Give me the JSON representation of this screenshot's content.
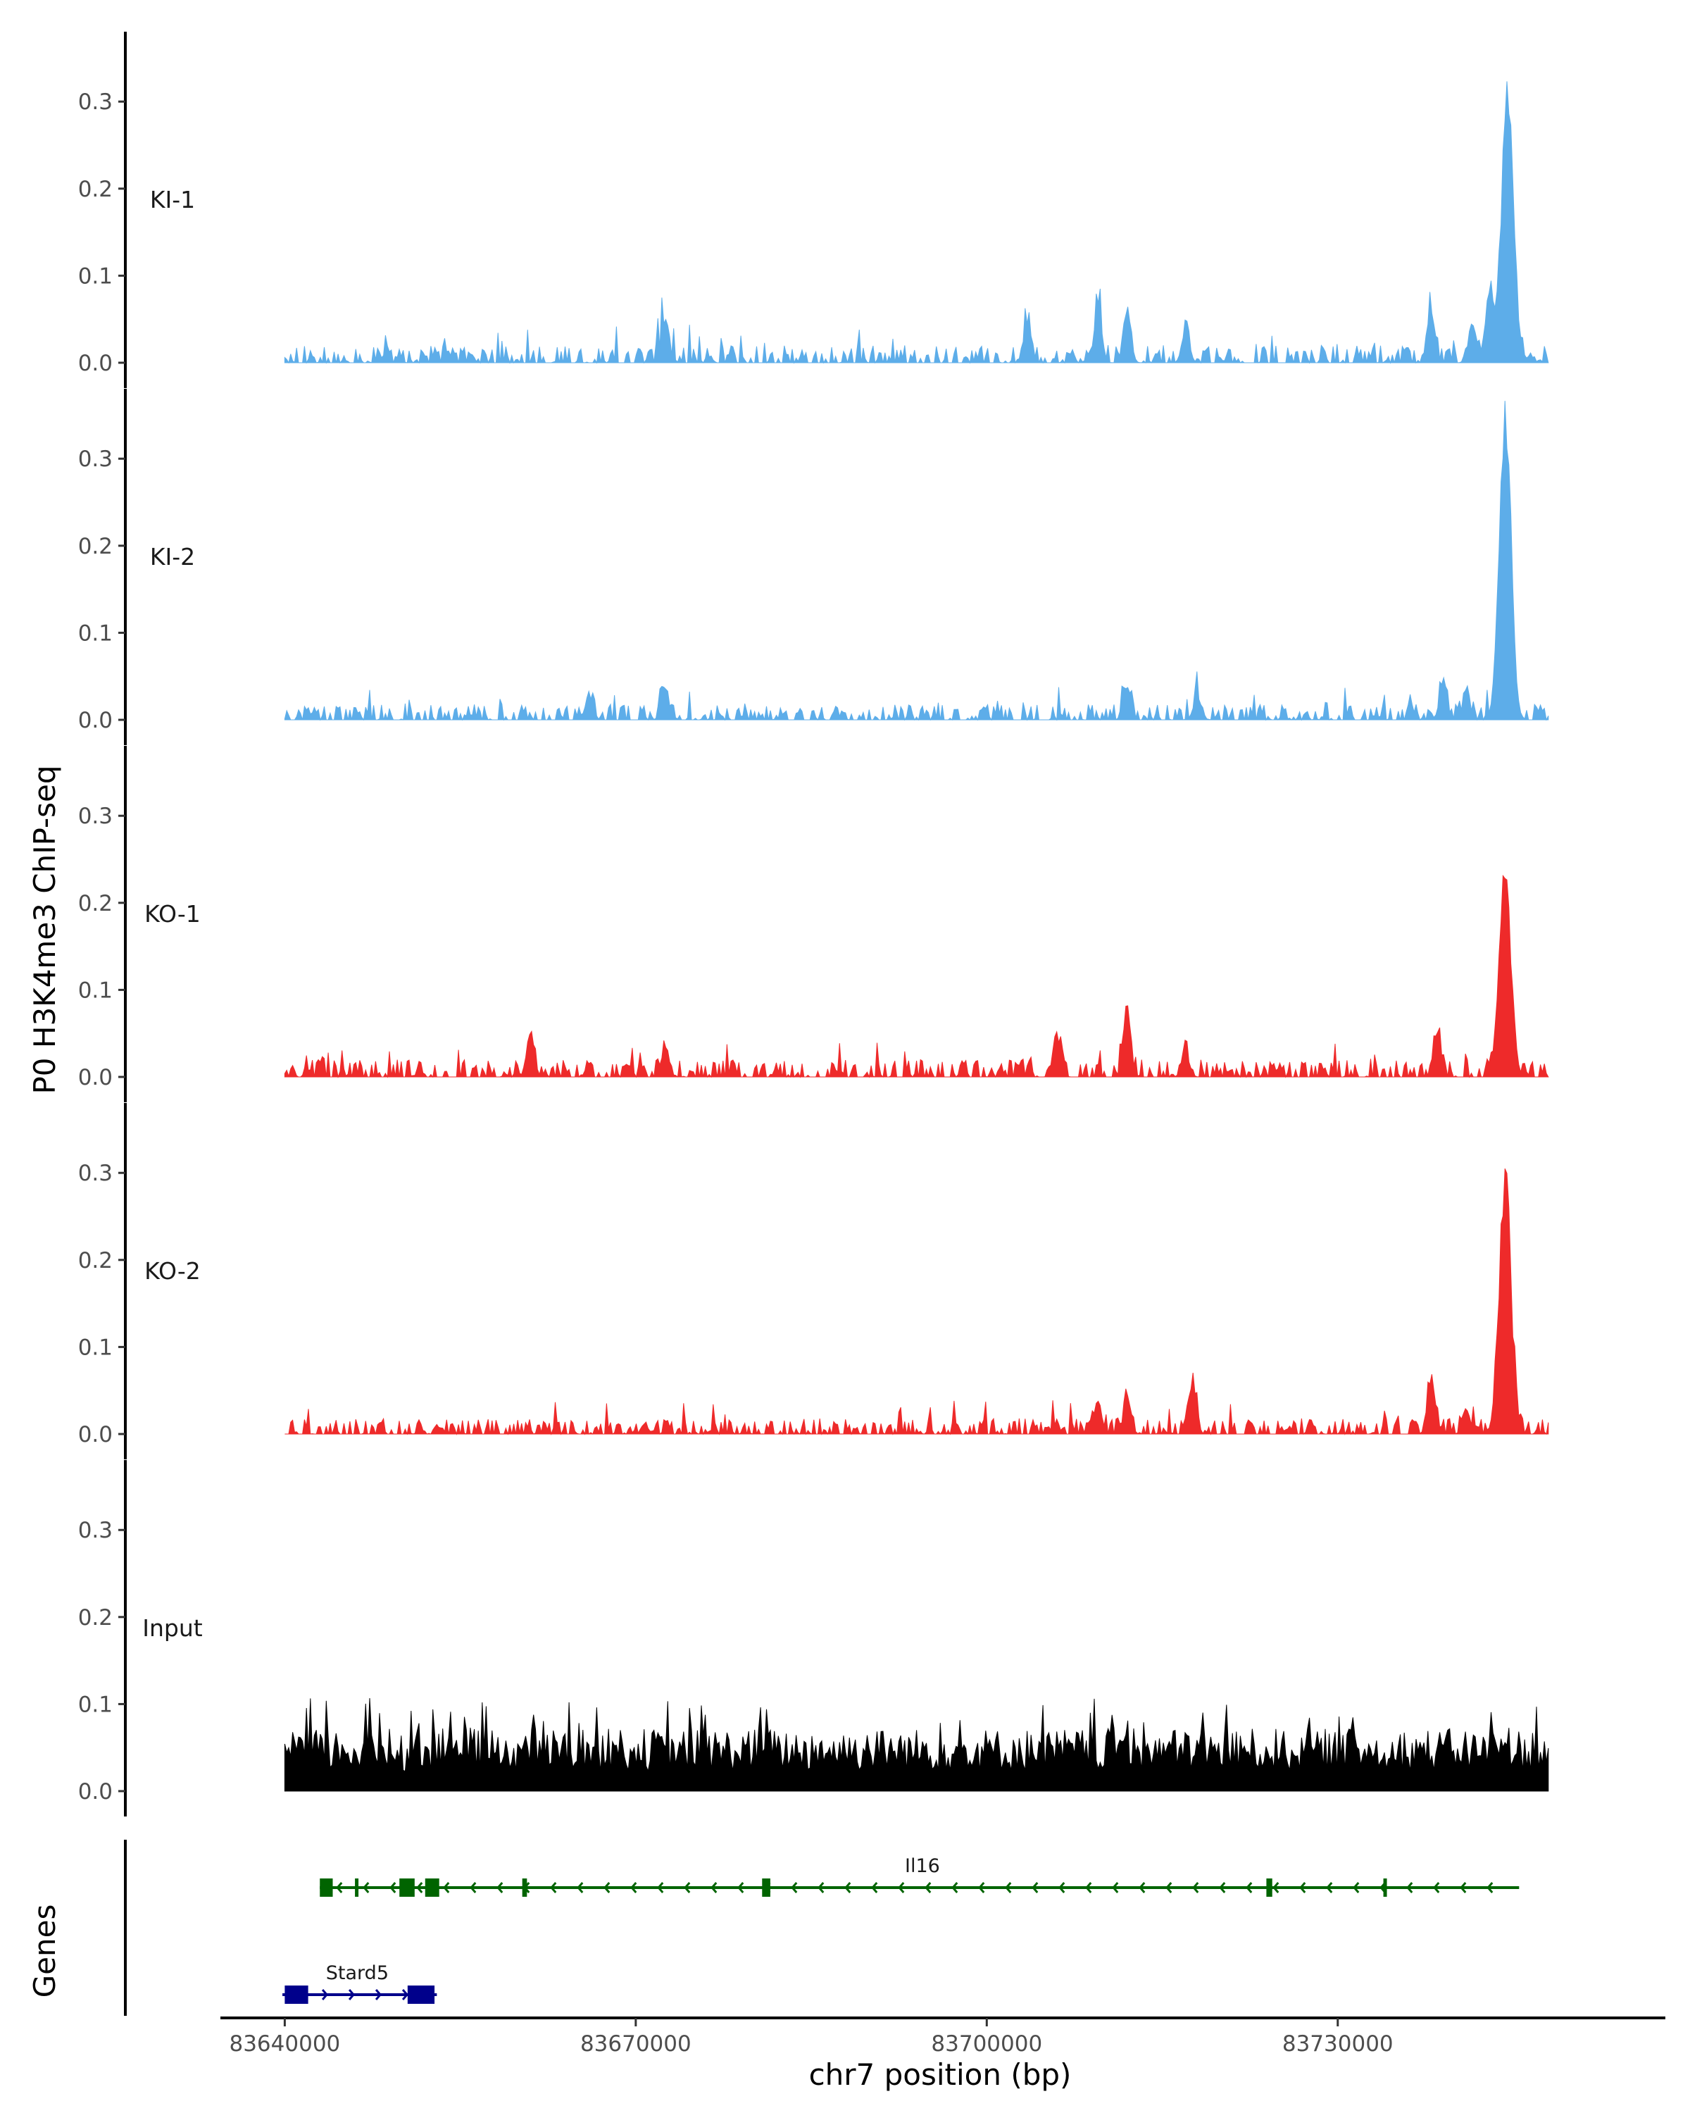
{
  "chart_data": {
    "type": "area",
    "title": "",
    "xlabel": "chr7 position (bp)",
    "ylabel": "P0 H3K4me3 ChIP-seq",
    "genes_label": "Genes",
    "xlim": [
      83634500,
      83758000
    ],
    "ylim": [
      0,
      0.39
    ],
    "x_ticks": [
      83640000,
      83670000,
      83700000,
      83730000
    ],
    "x_tick_labels": [
      "83640000",
      "83670000",
      "83700000",
      "83730000"
    ],
    "y_ticks": [
      0.0,
      0.1,
      0.2,
      0.3
    ],
    "y_tick_labels": [
      "0.0",
      "0.1",
      "0.2",
      "0.3"
    ],
    "grid": false,
    "legend": "none",
    "x_start": 83640000,
    "x_end": 83748000,
    "series": [
      {
        "name": "KI-1",
        "color": "#5dade9",
        "peaks": [
          {
            "x": 83672500,
            "y": 0.05
          },
          {
            "x": 83703500,
            "y": 0.05
          },
          {
            "x": 83709500,
            "y": 0.07
          },
          {
            "x": 83712000,
            "y": 0.06
          },
          {
            "x": 83717000,
            "y": 0.04
          },
          {
            "x": 83738000,
            "y": 0.06
          },
          {
            "x": 83741500,
            "y": 0.05
          },
          {
            "x": 83743000,
            "y": 0.09
          },
          {
            "x": 83744500,
            "y": 0.33
          }
        ],
        "background": 0.02
      },
      {
        "name": "KI-2",
        "color": "#5dade9",
        "peaks": [
          {
            "x": 83666000,
            "y": 0.03
          },
          {
            "x": 83672500,
            "y": 0.04
          },
          {
            "x": 83712000,
            "y": 0.04
          },
          {
            "x": 83718000,
            "y": 0.03
          },
          {
            "x": 83739000,
            "y": 0.04
          },
          {
            "x": 83741000,
            "y": 0.03
          },
          {
            "x": 83744300,
            "y": 0.375
          }
        ],
        "background": 0.018
      },
      {
        "name": "KO-1",
        "color": "#ee2a2a",
        "peaks": [
          {
            "x": 83661000,
            "y": 0.055
          },
          {
            "x": 83672500,
            "y": 0.03
          },
          {
            "x": 83706000,
            "y": 0.05
          },
          {
            "x": 83712000,
            "y": 0.07
          },
          {
            "x": 83717000,
            "y": 0.03
          },
          {
            "x": 83738500,
            "y": 0.05
          },
          {
            "x": 83744300,
            "y": 0.25
          }
        ],
        "background": 0.02
      },
      {
        "name": "KO-2",
        "color": "#ee2a2a",
        "peaks": [
          {
            "x": 83709500,
            "y": 0.04
          },
          {
            "x": 83712000,
            "y": 0.04
          },
          {
            "x": 83717500,
            "y": 0.06
          },
          {
            "x": 83738000,
            "y": 0.07
          },
          {
            "x": 83741000,
            "y": 0.03
          },
          {
            "x": 83744300,
            "y": 0.31
          }
        ],
        "background": 0.018
      },
      {
        "name": "Input",
        "color": "#000000",
        "peaks": [],
        "background": 0.09
      }
    ],
    "genes": [
      {
        "name": "Il16",
        "color": "#006400",
        "strand": "-",
        "start": 83643000,
        "end": 83745500,
        "exons": [
          [
            83643000,
            83644100
          ],
          [
            83646000,
            83646300
          ],
          [
            83649800,
            83651100
          ],
          [
            83652000,
            83653200
          ],
          [
            83660300,
            83660700
          ],
          [
            83680800,
            83681500
          ],
          [
            83723900,
            83724400
          ],
          [
            83733900,
            83734200
          ]
        ],
        "label_x": 83694500
      },
      {
        "name": "Stard5",
        "color": "#00008b",
        "strand": "+",
        "start": 83639800,
        "end": 83653000,
        "exons": [
          [
            83640000,
            83642000
          ],
          [
            83650500,
            83652800
          ]
        ],
        "label_x": 83646200
      }
    ]
  }
}
